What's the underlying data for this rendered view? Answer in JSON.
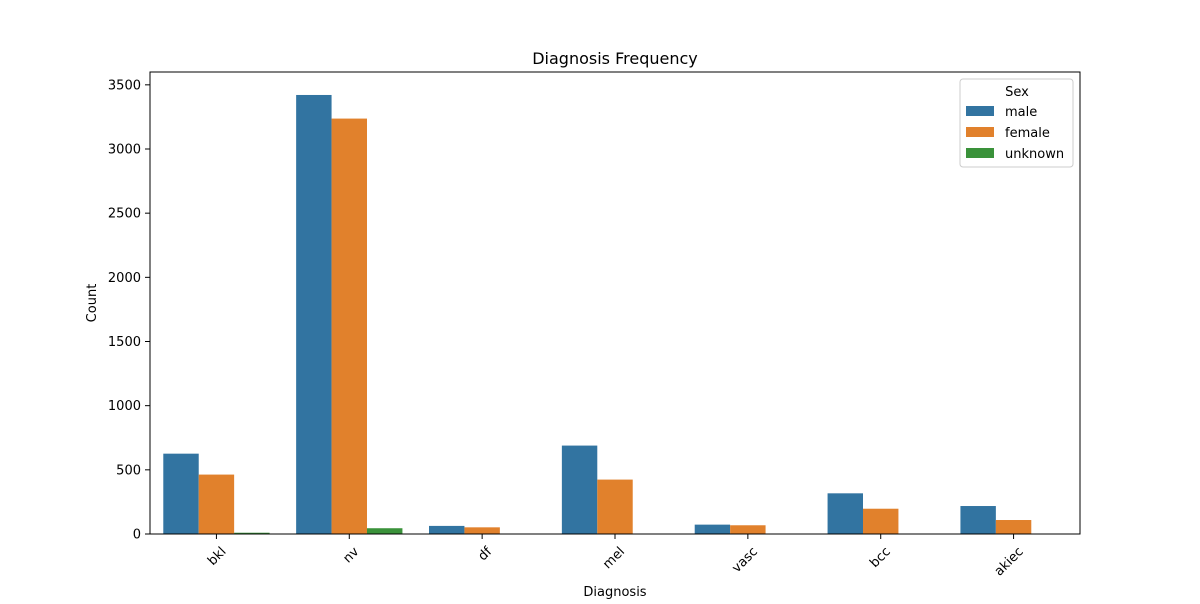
{
  "chart_data": {
    "type": "bar",
    "title": "Diagnosis Frequency",
    "xlabel": "Diagnosis",
    "ylabel": "Count",
    "categories": [
      "bkl",
      "nv",
      "df",
      "mel",
      "vasc",
      "bcc",
      "akiec"
    ],
    "series": [
      {
        "name": "male",
        "color": "#3274a1",
        "values": [
          626,
          3421,
          63,
          689,
          73,
          317,
          218
        ]
      },
      {
        "name": "female",
        "color": "#e1812c",
        "values": [
          463,
          3237,
          52,
          424,
          68,
          197,
          109
        ]
      },
      {
        "name": "unknown",
        "color": "#3a923a",
        "values": [
          10,
          45,
          0,
          0,
          0,
          0,
          0
        ]
      }
    ],
    "ylim": [
      0,
      3600
    ],
    "yticks": [
      0,
      500,
      1000,
      1500,
      2000,
      2500,
      3000,
      3500
    ],
    "grid": false,
    "legend": {
      "title": "Sex",
      "placement": "top-right"
    },
    "tick_label_rotation": 45
  }
}
